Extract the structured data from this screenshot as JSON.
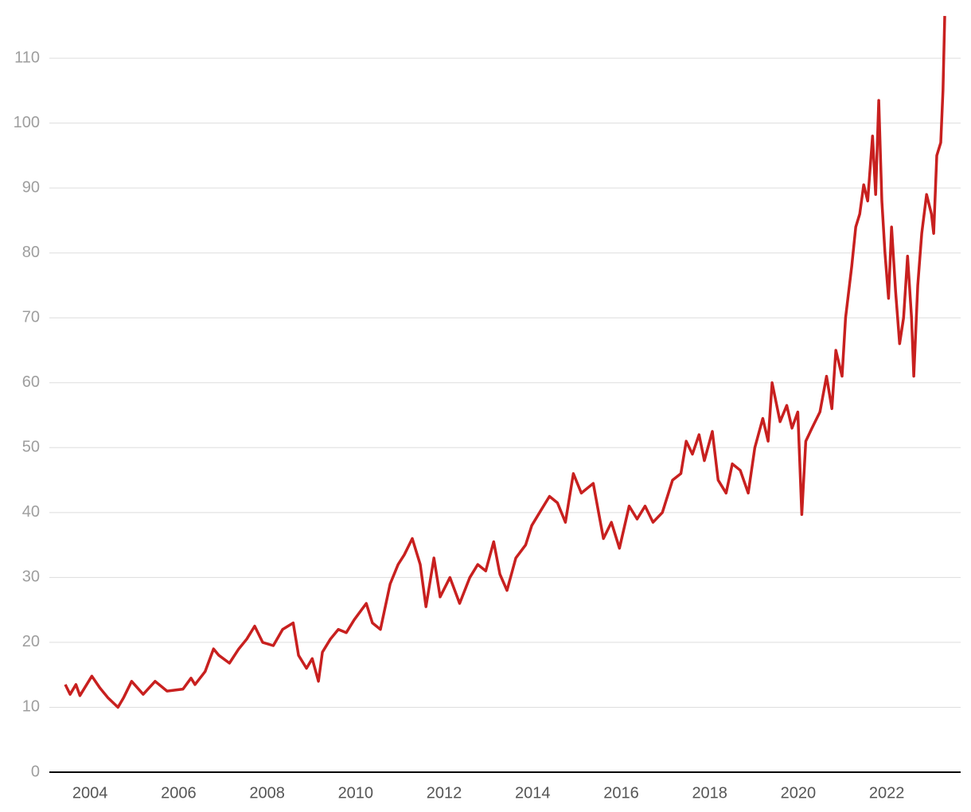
{
  "chart_data": {
    "type": "line",
    "x": [
      2003.44,
      2003.55,
      2003.68,
      2003.77,
      2004.04,
      2004.22,
      2004.4,
      2004.63,
      2004.76,
      2004.94,
      2005.2,
      2005.47,
      2005.74,
      2006.1,
      2006.28,
      2006.37,
      2006.6,
      2006.79,
      2006.91,
      2007.15,
      2007.36,
      2007.54,
      2007.72,
      2007.9,
      2008.14,
      2008.35,
      2008.59,
      2008.71,
      2008.89,
      2009.02,
      2009.16,
      2009.25,
      2009.43,
      2009.61,
      2009.79,
      2009.97,
      2010.24,
      2010.38,
      2010.56,
      2010.78,
      2010.96,
      2011.1,
      2011.28,
      2011.46,
      2011.59,
      2011.77,
      2011.91,
      2012.13,
      2012.35,
      2012.58,
      2012.76,
      2012.94,
      2013.12,
      2013.26,
      2013.42,
      2013.62,
      2013.84,
      2013.98,
      2014.2,
      2014.38,
      2014.56,
      2014.74,
      2014.92,
      2015.1,
      2015.37,
      2015.49,
      2015.6,
      2015.78,
      2015.96,
      2016.18,
      2016.36,
      2016.54,
      2016.72,
      2016.93,
      2017.16,
      2017.35,
      2017.47,
      2017.61,
      2017.76,
      2017.88,
      2018.06,
      2018.19,
      2018.37,
      2018.51,
      2018.69,
      2018.87,
      2019.02,
      2019.2,
      2019.32,
      2019.41,
      2019.59,
      2019.74,
      2019.86,
      2019.99,
      2020.08,
      2020.17,
      2020.31,
      2020.49,
      2020.64,
      2020.76,
      2020.85,
      2020.99,
      2021.07,
      2021.21,
      2021.3,
      2021.39,
      2021.48,
      2021.57,
      2021.68,
      2021.75,
      2021.82,
      2021.89,
      2021.96,
      2022.04,
      2022.11,
      2022.2,
      2022.29,
      2022.38,
      2022.47,
      2022.56,
      2022.61,
      2022.7,
      2022.79,
      2022.9,
      2023.01,
      2023.06,
      2023.13,
      2023.22,
      2023.27,
      2023.31
    ],
    "series": [
      {
        "color": "#c8201f",
        "values": [
          13.5,
          12,
          13.5,
          11.8,
          14.8,
          13,
          11.5,
          10,
          11.5,
          14,
          12,
          14,
          12.5,
          12.8,
          14.5,
          13.5,
          15.5,
          19,
          18,
          16.8,
          19,
          20.5,
          22.5,
          20,
          19.5,
          22,
          23,
          18,
          16,
          17.5,
          14,
          18.5,
          20.5,
          22,
          21.5,
          23.5,
          26,
          23,
          22,
          29,
          32,
          33.5,
          36,
          32,
          25.5,
          33,
          27,
          30,
          26,
          30,
          32,
          31,
          35.5,
          30.5,
          28,
          33,
          35,
          38,
          40.5,
          42.5,
          41.5,
          38.5,
          46,
          43,
          44.5,
          40,
          36,
          38.5,
          34.5,
          41,
          39,
          41,
          38.5,
          40,
          45,
          46,
          51,
          49,
          52,
          48,
          52.5,
          45,
          43,
          47.5,
          46.5,
          43,
          50,
          54.5,
          51,
          60,
          54,
          56.5,
          53,
          55.5,
          39.7,
          51,
          53,
          55.5,
          61,
          56,
          65,
          61,
          70,
          78,
          84,
          86,
          90.5,
          88,
          98,
          89,
          103.5,
          88,
          80,
          73,
          84,
          74,
          66,
          70,
          79.5,
          70,
          61,
          75,
          83,
          89,
          86,
          83,
          95,
          97,
          105,
          116.5
        ]
      }
    ],
    "xlim": [
      2003.08,
      2023.67
    ],
    "xticks": [
      2004,
      2006,
      2008,
      2010,
      2012,
      2014,
      2016,
      2018,
      2020,
      2022
    ],
    "ylim": [
      0,
      117
    ],
    "yticks": [
      0,
      10,
      20,
      30,
      40,
      50,
      60,
      70,
      80,
      90,
      100,
      110
    ],
    "grid": true
  }
}
